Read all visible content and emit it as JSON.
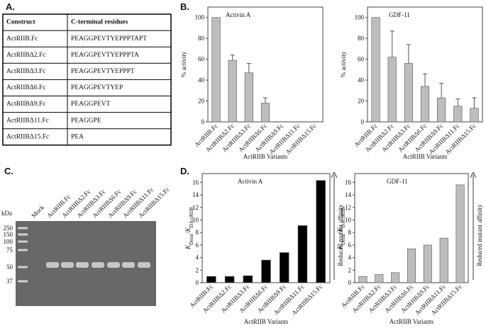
{
  "panel_labels": [
    "A.",
    "B.",
    "C.",
    "D."
  ],
  "table": {
    "header": [
      "Construct",
      "C-terminal residues"
    ],
    "rows": [
      [
        "ActRIIB.Fc",
        "PEAGGPEVTYEPPPTAPT"
      ],
      [
        "ActRIIBΔ2.Fc",
        "PEAGGPEVTYEPPPTA"
      ],
      [
        "ActRIIBΔ3.Fc",
        "PEAGGPEVTYEPPPT"
      ],
      [
        "ActRIIBΔ6.Fc",
        "PEAGGPEVTYEP"
      ],
      [
        "ActRIIBΔ9.Fc",
        "PEAGGPEVT"
      ],
      [
        "ActRIIBΔ11.Fc",
        "PEAGGPE"
      ],
      [
        "ActRIIBΔ15.Fc",
        "PEA"
      ]
    ]
  },
  "gel": {
    "unit": "kDa",
    "lanes": [
      "Mock",
      "ActRIIB.Fc",
      "ActRIIBΔ2.Fc",
      "ActRIIBΔ3.Fc",
      "ActRIIBΔ6.Fc",
      "ActRIIBΔ9.Fc",
      "ActRIIBΔ11.Fc",
      "ActRIIBΔ15.Fc"
    ],
    "markers": [
      250,
      150,
      100,
      75,
      50,
      37
    ]
  },
  "chart_data": [
    {
      "type": "bar",
      "title": "Activin A",
      "ylabel": [
        {
          "text": "% activity"
        }
      ],
      "xlabel": "ActRIIB Variants",
      "categories": [
        "ActRIIB.Fc",
        "ActRIIBΔ2.Fc",
        "ActRIIBΔ3.Fc",
        "ActRIIBΔ6.Fc",
        "ActRIIBΔ9.Fc",
        "ActRIIBΔ11.Fc",
        "ActRIIBΔ15.Fc"
      ],
      "values": [
        100,
        59,
        47,
        18,
        0,
        0,
        0
      ],
      "errors": [
        null,
        5,
        9,
        5,
        null,
        null,
        null
      ],
      "color": "#bdbdbd",
      "ylim": [
        0,
        110
      ],
      "yticks": [
        0,
        20,
        40,
        60,
        80,
        100
      ]
    },
    {
      "type": "bar",
      "title": "GDF-11",
      "ylabel": [
        {
          "text": "% activity"
        }
      ],
      "xlabel": "ActRIIB Variants",
      "categories": [
        "ActRIIB.Fc",
        "ActRIIBΔ2.Fc",
        "ActRIIBΔ3.Fc",
        "ActRIIBΔ6.Fc",
        "ActRIIBΔ9.Fc",
        "ActRIIBΔ11.Fc",
        "ActRIIBΔ15.Fc"
      ],
      "values": [
        100,
        62,
        56,
        34,
        23,
        15,
        13
      ],
      "errors": [
        null,
        25,
        18,
        12,
        14,
        7,
        10
      ],
      "color": "#bdbdbd",
      "ylim": [
        0,
        110
      ],
      "yticks": [
        0,
        20,
        40,
        60,
        80,
        100
      ]
    },
    {
      "type": "bar",
      "title": "Activin A",
      "ylabel": [
        {
          "text": "K",
          "italic": true
        },
        {
          "text": "Dmut",
          "sub": true
        },
        {
          "text": "/"
        },
        {
          "text": "K",
          "italic": true
        },
        {
          "text": "DActRIIB",
          "sub": true
        }
      ],
      "xlabel": "ActRIIB Variants",
      "annotation": "Reduced mutant affinity",
      "categories": [
        "ActRIIB.Fc",
        "ActRIIBΔ2.Fc",
        "ActRIIBΔ3.Fc",
        "ActRIIBΔ6.Fc",
        "ActRIIBΔ9.Fc",
        "ActRIIBΔ11.Fc",
        "ActRIIBΔ15.Fc"
      ],
      "values": [
        1,
        1,
        1.1,
        3.6,
        4.8,
        9.1,
        16.3
      ],
      "color": "#000000",
      "ylim": [
        0,
        17.4
      ],
      "yticks": [
        0,
        2,
        4,
        6,
        8,
        10,
        12,
        14,
        16
      ]
    },
    {
      "type": "bar",
      "title": "GDF-11",
      "ylabel": [
        {
          "text": "K",
          "italic": true
        },
        {
          "text": "Dmut",
          "sub": true
        },
        {
          "text": "/"
        },
        {
          "text": "K",
          "italic": true
        },
        {
          "text": "DActRIIB",
          "sub": true
        }
      ],
      "xlabel": "ActRIIB Variants",
      "annotation": "Reduced mutant affinity",
      "categories": [
        "ActRIIB.Fc",
        "ActRIIBΔ2.Fc",
        "ActRIIBΔ3.Fc",
        "ActRIIBΔ6.Fc",
        "ActRIIBΔ9.Fc",
        "ActRIIBΔ11.Fc",
        "ActRIIBΔ15.Fc"
      ],
      "values": [
        1,
        1.3,
        1.6,
        5.4,
        6,
        7.1,
        15.6
      ],
      "color": "#bdbdbd",
      "ylim": [
        0,
        17.4
      ],
      "yticks": [
        0,
        2,
        4,
        6,
        8,
        10,
        12,
        14,
        16
      ]
    }
  ]
}
